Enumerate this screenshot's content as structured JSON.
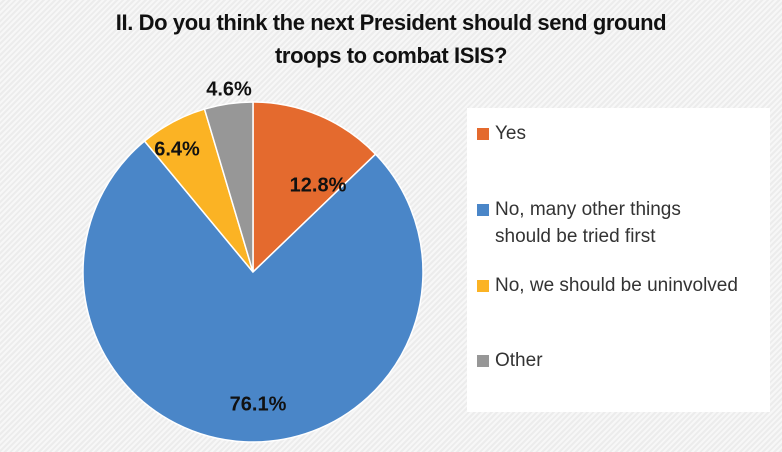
{
  "chart_data": {
    "type": "pie",
    "title_lines": [
      "II. Do you think the next President should send ground",
      "troops to combat ISIS?"
    ],
    "categories": [
      "Yes",
      "No, many other things should be tried first",
      "No, we should be uninvolved",
      "Other"
    ],
    "legend_lines": [
      [
        "Yes"
      ],
      [
        "No, many other things",
        "should be tried first"
      ],
      [
        "No, we should be uninvolved"
      ],
      [
        "Other"
      ]
    ],
    "values": [
      12.8,
      76.1,
      6.4,
      4.6
    ],
    "labels": [
      "12.8%",
      "76.1%",
      "6.4%",
      "4.6%"
    ],
    "colors": [
      "#e46a2e",
      "#4a86c8",
      "#fbb324",
      "#979797"
    ],
    "start_angle": "top",
    "direction": "clockwise",
    "legend_position": "right"
  }
}
